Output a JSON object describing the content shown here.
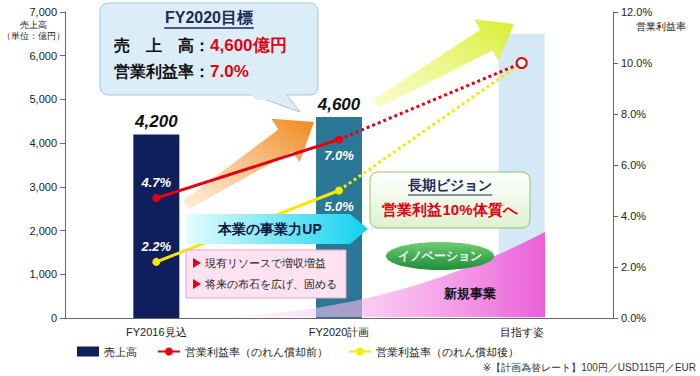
{
  "chart_data": {
    "type": "bar",
    "categories": [
      "FY2016見込",
      "FY2020計画",
      "目指す姿"
    ],
    "series": [
      {
        "name": "売上高",
        "type": "bar",
        "colors": [
          "#0f1f5c",
          "#2a7896",
          "#d5e8f6"
        ],
        "values": [
          4200,
          4600,
          6500
        ],
        "value_labels": [
          "4,200",
          "4,600",
          null
        ]
      },
      {
        "name": "営業利益率（のれん償却前）",
        "type": "line",
        "axis": "y2",
        "color": "#e60012",
        "marker": "circle",
        "values": [
          4.7,
          7.0,
          10.0
        ],
        "value_labels": [
          "4.7%",
          "7.0%",
          null
        ]
      },
      {
        "name": "営業利益率（のれん償却後）",
        "type": "line",
        "axis": "y2",
        "color": "#f5e900",
        "marker": "circle",
        "values": [
          2.2,
          5.0,
          10.0
        ],
        "value_labels": [
          "2.2%",
          "5.0%",
          null
        ]
      }
    ],
    "ylabel": "売上高\n（単位：億円）",
    "y2label": "営業利益率",
    "ylim": [
      0,
      7000
    ],
    "yticks": [
      0,
      {
        "value": 1000,
        "label": "1,000"
      },
      {
        "value": 2000,
        "label": "2,000"
      },
      {
        "value": 3000,
        "label": "3,000"
      },
      {
        "value": 4000,
        "label": "4,000"
      },
      {
        "value": 5000,
        "label": "5,000"
      },
      {
        "value": 6000,
        "label": "6,000"
      },
      {
        "value": 7000,
        "label": "7,000"
      }
    ],
    "y2lim": [
      0,
      12
    ],
    "y2ticks": [
      {
        "value": 0,
        "label": "0.0%"
      },
      {
        "value": 2,
        "label": "2.0%"
      },
      {
        "value": 4,
        "label": "4.0%"
      },
      {
        "value": 6,
        "label": "6.0%"
      },
      {
        "value": 8,
        "label": "8.0%"
      },
      {
        "value": 10,
        "label": "10.0%"
      },
      {
        "value": 12,
        "label": "12.0%"
      }
    ],
    "grid": false,
    "legend": "bottom",
    "data_labels": true,
    "annotations": {
      "target_box": {
        "title": "FY2020目標",
        "lines": [
          [
            "売　上　高：",
            "4,600億円"
          ],
          [
            "営業利益率：",
            "7.0%"
          ]
        ]
      },
      "vision_box": {
        "title": "長期ビジョン",
        "text": "営業利益10%体質へ"
      },
      "banner": "本業の事業力UP",
      "bullets": [
        "現有リソースで増収増益",
        "将来の布石を広げ、固める"
      ],
      "innovation": "イノベーション",
      "new_business": "新規事業"
    },
    "footnote": "※【計画為替レート】100円／USD115円／EUR"
  }
}
